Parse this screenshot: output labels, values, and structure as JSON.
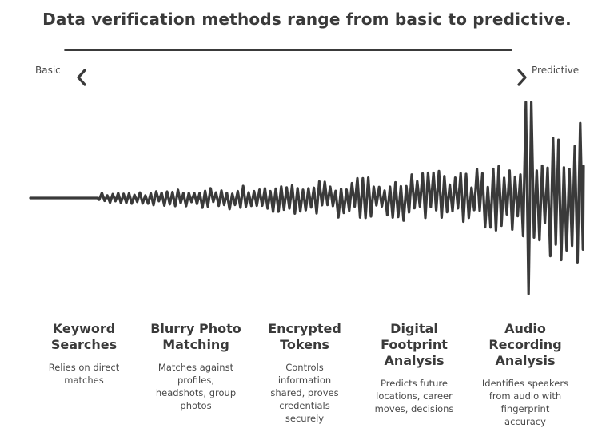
{
  "title": "Data verification methods range from basic to predictive.",
  "scale": {
    "left_label": "Basic",
    "right_label": "Predictive"
  },
  "stages": [
    {
      "title_lines": [
        "Keyword",
        "Searches"
      ],
      "desc_lines": [
        "Relies on direct",
        "matches"
      ]
    },
    {
      "title_lines": [
        "Blurry Photo",
        "Matching"
      ],
      "desc_lines": [
        "Matches against",
        "profiles,",
        "headshots, group",
        "photos"
      ]
    },
    {
      "title_lines": [
        "Encrypted",
        "Tokens"
      ],
      "desc_lines": [
        "Controls",
        "information",
        "shared, proves",
        "credentials",
        "securely"
      ]
    },
    {
      "title_lines": [
        "Digital",
        "Footprint",
        "Analysis"
      ],
      "desc_lines": [
        "Predicts future",
        "locations, career",
        "moves, decisions"
      ]
    },
    {
      "title_lines": [
        "Audio",
        "Recording",
        "Analysis"
      ],
      "desc_lines": [
        "Identifies speakers",
        "from audio with",
        "fingerprint",
        "accuracy"
      ]
    }
  ],
  "colors": {
    "ink": "#3a3a3a"
  }
}
